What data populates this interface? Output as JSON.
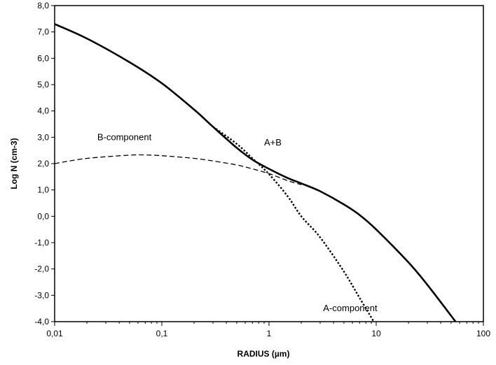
{
  "chart_data": {
    "type": "line",
    "title": "",
    "xlabel": "RADIUS (µm)",
    "ylabel": "Log N (cm-3)",
    "xscale": "log",
    "xlim": [
      0.01,
      100
    ],
    "ylim": [
      -4.0,
      8.0
    ],
    "grid": false,
    "x_tick_labels": [
      "0,01",
      "0,1",
      "1",
      "10",
      "100"
    ],
    "y_tick_labels": [
      "8,0",
      "7,0",
      "6,0",
      "5,0",
      "4,0",
      "3,0",
      "2,0",
      "1,0",
      "0,0",
      "-1,0",
      "-2,0",
      "-3,0",
      "-4,0"
    ],
    "series": [
      {
        "name": "A+B",
        "style": "solid",
        "x": [
          0.01,
          0.02,
          0.05,
          0.1,
          0.2,
          0.3,
          0.5,
          0.7,
          1,
          1.5,
          2,
          3,
          5,
          7,
          10,
          20,
          30,
          55
        ],
        "y": [
          7.3,
          6.75,
          5.85,
          5.05,
          4.05,
          3.4,
          2.6,
          2.15,
          1.8,
          1.45,
          1.25,
          0.95,
          0.45,
          0.05,
          -0.5,
          -1.75,
          -2.6,
          -4.0
        ]
      },
      {
        "name": "A-component",
        "style": "dotted",
        "x": [
          0.3,
          0.5,
          0.7,
          1,
          1.5,
          2,
          3,
          5,
          7,
          9.5
        ],
        "y": [
          3.4,
          2.75,
          2.2,
          1.6,
          0.75,
          0.0,
          -0.8,
          -2.1,
          -3.1,
          -4.0
        ]
      },
      {
        "name": "B-component",
        "style": "dashed",
        "x": [
          0.01,
          0.02,
          0.05,
          0.07,
          0.1,
          0.2,
          0.3,
          0.5,
          0.7,
          1,
          1.5,
          2
        ],
        "y": [
          2.0,
          2.2,
          2.32,
          2.33,
          2.3,
          2.2,
          2.1,
          1.95,
          1.8,
          1.62,
          1.35,
          1.2
        ]
      }
    ],
    "annotations": [
      {
        "text": "B-component",
        "x": 0.025,
        "y": 3.0
      },
      {
        "text": "A+B",
        "x": 0.9,
        "y": 2.8
      },
      {
        "text": "A-component",
        "x": 3.2,
        "y": -3.5
      }
    ]
  }
}
